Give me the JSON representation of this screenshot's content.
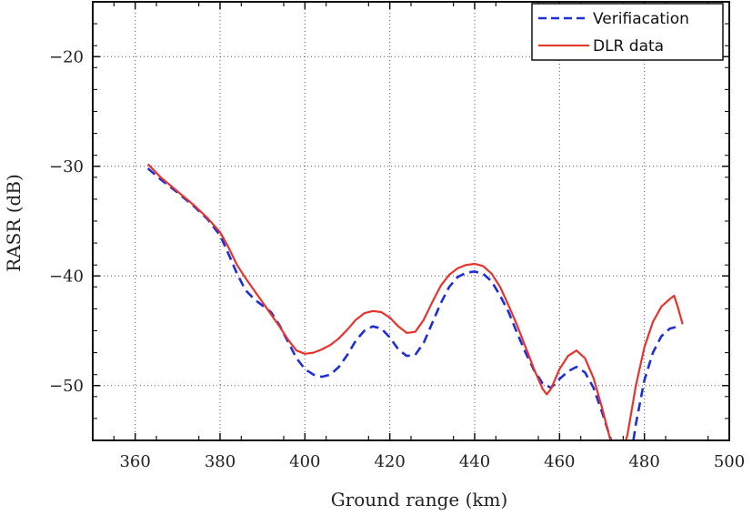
{
  "chart_data": {
    "type": "line",
    "xlabel": "Ground range (km)",
    "ylabel": "RASR (dB)",
    "xlim": [
      350,
      500
    ],
    "ylim": [
      -55,
      -15
    ],
    "xticks": [
      360,
      380,
      400,
      420,
      440,
      460,
      480,
      500
    ],
    "yticks": [
      -20,
      -30,
      -40,
      -50
    ],
    "ytick_labels": [
      "−20",
      "−30",
      "−40",
      "−50"
    ],
    "grid": true,
    "legend_position": "top-right",
    "series": [
      {
        "name": "Verifiacation",
        "color": "#1f2fd6",
        "style": "dashed",
        "points": [
          [
            363,
            -30.2
          ],
          [
            366,
            -31.2
          ],
          [
            370,
            -32.4
          ],
          [
            374,
            -33.7
          ],
          [
            377,
            -34.8
          ],
          [
            380,
            -36.3
          ],
          [
            382,
            -38.0
          ],
          [
            384,
            -39.8
          ],
          [
            386,
            -41.3
          ],
          [
            388,
            -42.1
          ],
          [
            390,
            -42.7
          ],
          [
            392,
            -43.3
          ],
          [
            394,
            -44.5
          ],
          [
            396,
            -46.0
          ],
          [
            398,
            -47.5
          ],
          [
            400,
            -48.5
          ],
          [
            402,
            -49.0
          ],
          [
            404,
            -49.2
          ],
          [
            406,
            -49.0
          ],
          [
            408,
            -48.3
          ],
          [
            410,
            -47.2
          ],
          [
            412,
            -45.9
          ],
          [
            414,
            -45.0
          ],
          [
            416,
            -44.6
          ],
          [
            418,
            -44.8
          ],
          [
            420,
            -45.6
          ],
          [
            422,
            -46.7
          ],
          [
            424,
            -47.3
          ],
          [
            426,
            -47.2
          ],
          [
            428,
            -46.1
          ],
          [
            430,
            -44.3
          ],
          [
            432,
            -42.5
          ],
          [
            434,
            -41.0
          ],
          [
            436,
            -40.1
          ],
          [
            438,
            -39.7
          ],
          [
            440,
            -39.6
          ],
          [
            442,
            -39.8
          ],
          [
            444,
            -40.5
          ],
          [
            446,
            -41.8
          ],
          [
            448,
            -43.3
          ],
          [
            450,
            -45.2
          ],
          [
            452,
            -47.0
          ],
          [
            454,
            -48.6
          ],
          [
            456,
            -49.8
          ],
          [
            458,
            -50.2
          ],
          [
            460,
            -49.4
          ],
          [
            462,
            -48.7
          ],
          [
            464,
            -48.3
          ],
          [
            466,
            -48.8
          ],
          [
            468,
            -50.2
          ],
          [
            470,
            -52.4
          ],
          [
            472,
            -54.8
          ],
          [
            473,
            -56.0
          ],
          [
            477,
            -56.0
          ],
          [
            478,
            -53.5
          ],
          [
            480,
            -49.5
          ],
          [
            482,
            -47.0
          ],
          [
            484,
            -45.5
          ],
          [
            486,
            -44.8
          ],
          [
            488,
            -44.6
          ]
        ]
      },
      {
        "name": "DLR data",
        "color": "#e8332c",
        "style": "solid",
        "points": [
          [
            363,
            -29.8
          ],
          [
            366,
            -31.0
          ],
          [
            370,
            -32.3
          ],
          [
            374,
            -33.6
          ],
          [
            377,
            -34.7
          ],
          [
            380,
            -36.0
          ],
          [
            382,
            -37.4
          ],
          [
            384,
            -39.0
          ],
          [
            386,
            -40.2
          ],
          [
            388,
            -41.3
          ],
          [
            390,
            -42.4
          ],
          [
            392,
            -43.5
          ],
          [
            394,
            -44.6
          ],
          [
            396,
            -45.8
          ],
          [
            398,
            -46.8
          ],
          [
            400,
            -47.1
          ],
          [
            402,
            -47.0
          ],
          [
            404,
            -46.7
          ],
          [
            406,
            -46.3
          ],
          [
            408,
            -45.7
          ],
          [
            410,
            -44.9
          ],
          [
            412,
            -44.0
          ],
          [
            414,
            -43.4
          ],
          [
            416,
            -43.2
          ],
          [
            418,
            -43.3
          ],
          [
            420,
            -43.8
          ],
          [
            422,
            -44.6
          ],
          [
            424,
            -45.2
          ],
          [
            426,
            -45.1
          ],
          [
            428,
            -44.0
          ],
          [
            430,
            -42.4
          ],
          [
            432,
            -40.9
          ],
          [
            434,
            -39.9
          ],
          [
            436,
            -39.3
          ],
          [
            438,
            -39.0
          ],
          [
            440,
            -38.9
          ],
          [
            442,
            -39.1
          ],
          [
            444,
            -39.8
          ],
          [
            446,
            -41.0
          ],
          [
            448,
            -42.7
          ],
          [
            450,
            -44.5
          ],
          [
            452,
            -46.5
          ],
          [
            454,
            -48.5
          ],
          [
            456,
            -50.3
          ],
          [
            457,
            -50.8
          ],
          [
            458,
            -50.3
          ],
          [
            460,
            -48.5
          ],
          [
            462,
            -47.3
          ],
          [
            464,
            -46.8
          ],
          [
            466,
            -47.5
          ],
          [
            468,
            -49.3
          ],
          [
            470,
            -52.0
          ],
          [
            472,
            -55.0
          ],
          [
            473,
            -56.0
          ],
          [
            475,
            -56.0
          ],
          [
            476,
            -54.5
          ],
          [
            478,
            -50.0
          ],
          [
            480,
            -46.5
          ],
          [
            482,
            -44.2
          ],
          [
            484,
            -42.8
          ],
          [
            486,
            -42.1
          ],
          [
            487,
            -41.8
          ],
          [
            488,
            -43.0
          ],
          [
            489,
            -44.4
          ]
        ]
      }
    ]
  }
}
